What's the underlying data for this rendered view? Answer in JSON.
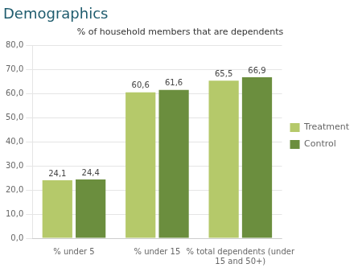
{
  "chart_data": {
    "type": "bar",
    "title": "Demographics",
    "subtitle": "% of household members that are dependents",
    "categories": [
      "% under 5",
      "% under 15",
      "% total dependents (under\n15 and 50+)"
    ],
    "series": [
      {
        "name": "Treatment",
        "color": "#b5c96a",
        "values": [
          24.1,
          60.6,
          65.5
        ],
        "value_labels": [
          "24,1",
          "60,6",
          "65,5"
        ]
      },
      {
        "name": "Control",
        "color": "#6b8e3e",
        "values": [
          24.4,
          61.6,
          66.9
        ],
        "value_labels": [
          "24,4",
          "61,6",
          "66,9"
        ]
      }
    ],
    "ylim": [
      0,
      80
    ],
    "yticks": [
      {
        "value": 0,
        "label": "0,0"
      },
      {
        "value": 10,
        "label": "10,0"
      },
      {
        "value": 20,
        "label": "20,0"
      },
      {
        "value": 30,
        "label": "30,0"
      },
      {
        "value": 40,
        "label": "40,0"
      },
      {
        "value": 50,
        "label": "50,0"
      },
      {
        "value": 60,
        "label": "60,0"
      },
      {
        "value": 70,
        "label": "70,0"
      },
      {
        "value": 80,
        "label": "80,0"
      }
    ],
    "grid": true,
    "legend": "right",
    "data_labels": true
  }
}
